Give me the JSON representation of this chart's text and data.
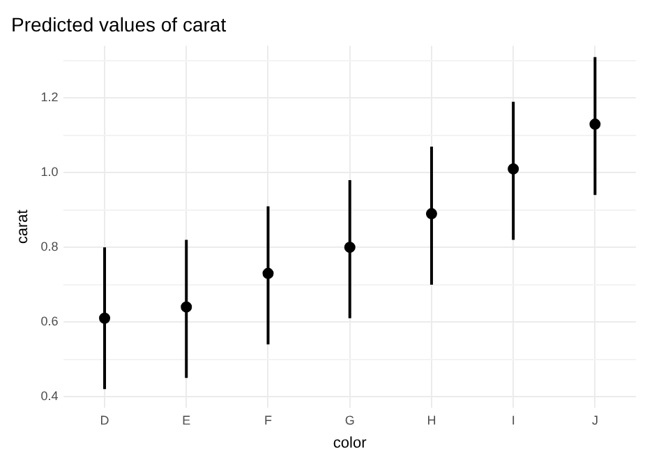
{
  "chart_data": {
    "type": "scatter",
    "title": "Predicted values of carat",
    "xlabel": "color",
    "ylabel": "carat",
    "categories": [
      "D",
      "E",
      "F",
      "G",
      "H",
      "I",
      "J"
    ],
    "values": [
      0.61,
      0.64,
      0.73,
      0.8,
      0.89,
      1.01,
      1.13
    ],
    "errors": [
      [
        0.42,
        0.8
      ],
      [
        0.45,
        0.82
      ],
      [
        0.54,
        0.91
      ],
      [
        0.61,
        0.98
      ],
      [
        0.7,
        1.07
      ],
      [
        0.82,
        1.19
      ],
      [
        0.94,
        1.31
      ]
    ],
    "color": "#000000",
    "marker": "circle",
    "ylim": [
      0.37,
      1.34
    ],
    "yticks": [
      0.4,
      {
        "value": 0.5,
        "label": null
      },
      0.6,
      {
        "value": 0.7,
        "label": null
      },
      0.8,
      {
        "value": 0.9,
        "label": null
      },
      {
        "value": 1,
        "label": "1.0"
      },
      {
        "value": 1.1,
        "label": null
      },
      1.2,
      {
        "value": 1.3,
        "label": null
      }
    ],
    "grid": true,
    "legend": false
  }
}
